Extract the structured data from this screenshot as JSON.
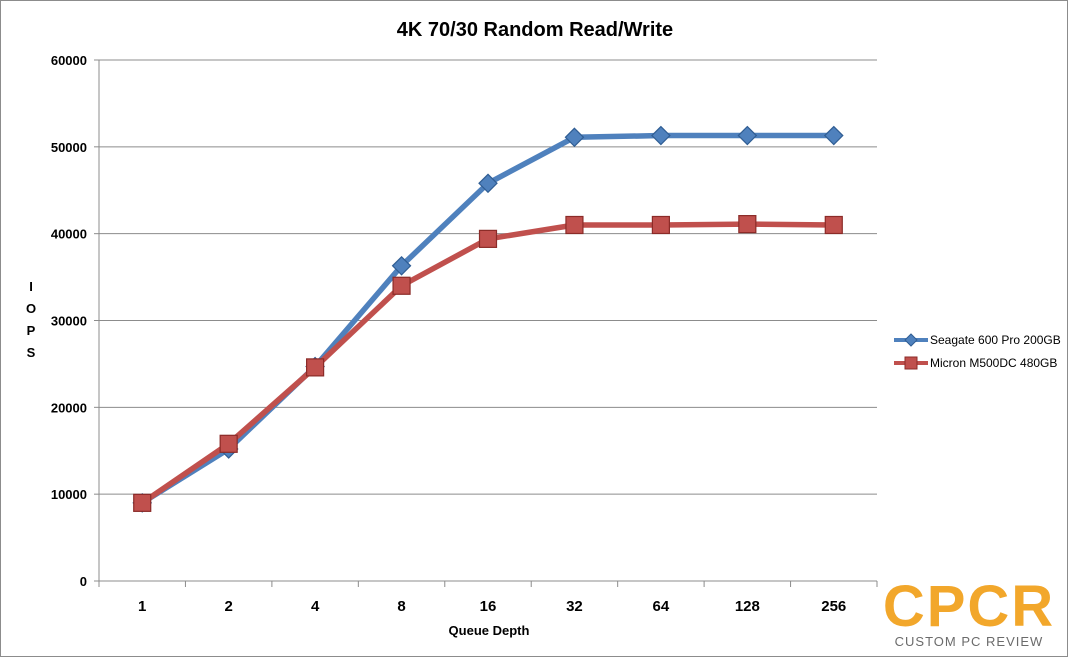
{
  "chart_data": {
    "type": "line",
    "title": "4K 70/30 Random Read/Write",
    "xlabel": "Queue Depth",
    "ylabel": "IOPS",
    "categories": [
      "1",
      "2",
      "4",
      "8",
      "16",
      "32",
      "64",
      "128",
      "256"
    ],
    "ylim": [
      0,
      60000
    ],
    "yticks": [
      0,
      10000,
      20000,
      30000,
      40000,
      50000,
      60000
    ],
    "grid": true,
    "legend": "right",
    "series": [
      {
        "name": "Seagate 600 Pro 200GB",
        "color": "#4f81bd",
        "marker": "diamond",
        "values": [
          9000,
          15200,
          24700,
          36300,
          45800,
          51100,
          51300,
          51300,
          51300
        ]
      },
      {
        "name": "Micron M500DC 480GB",
        "color": "#c0504d",
        "marker": "square",
        "values": [
          9000,
          15800,
          24600,
          34000,
          39400,
          41000,
          41000,
          41100,
          41000
        ]
      }
    ]
  },
  "watermark": {
    "logo": "CPCR",
    "subtitle": "CUSTOM PC REVIEW",
    "color": "#f2a72b"
  }
}
